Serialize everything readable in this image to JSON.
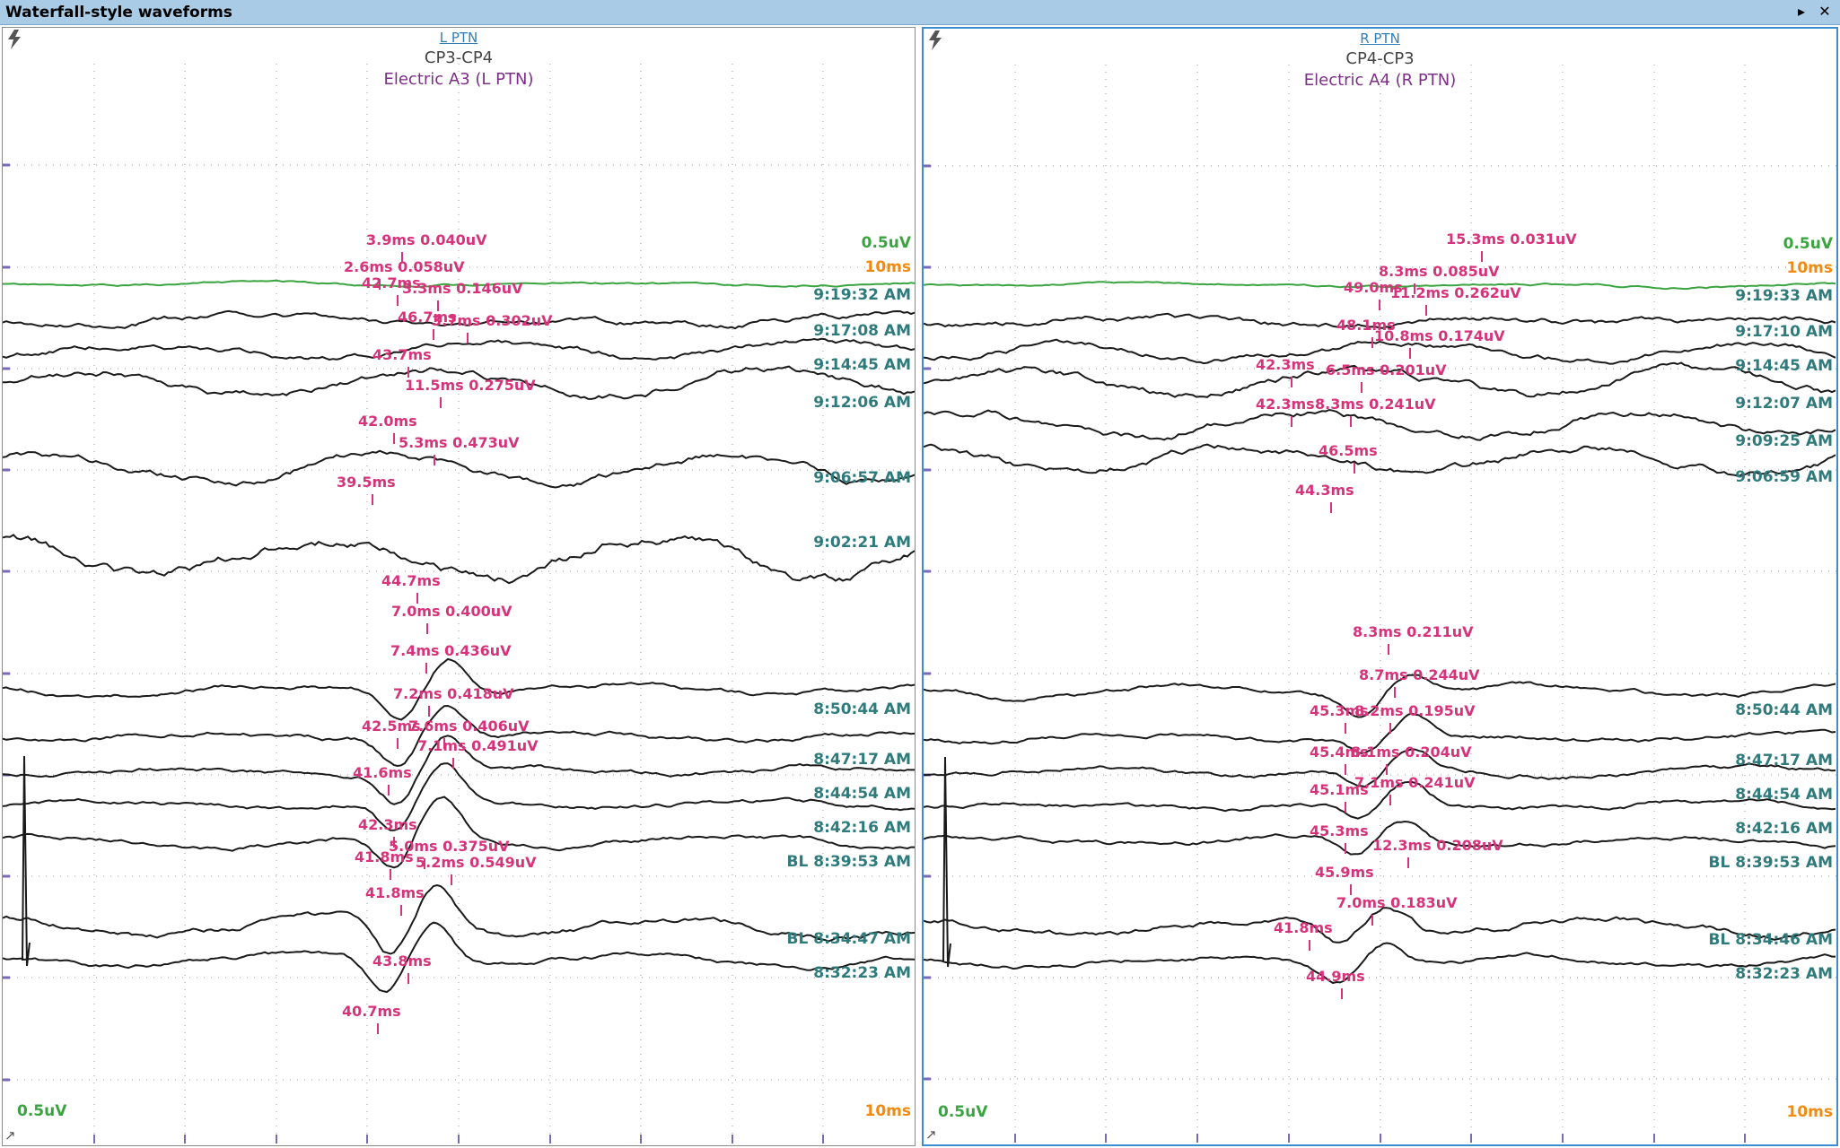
{
  "window": {
    "title": "Waterfall-style waveforms"
  },
  "colors": {
    "trace": "#1a1a1a",
    "baseline_trace": "#3aa540",
    "marker": "#d6337a",
    "timestamp": "#2f7b7b",
    "grid": "#9a9a9a",
    "axis_tick": "#7a6ab8",
    "volt_scale": "#3aa540",
    "time_scale": "#f08a10",
    "link": "#2f7fb6",
    "stim": "#7b2f86"
  },
  "icons": {
    "bolt": "lightning-bolt-icon",
    "arrow": "chevron-right-icon",
    "close": "close-icon"
  },
  "panels": [
    {
      "link": "L PTN",
      "montage": "CP3-CP4",
      "stim": "Electric A3 (L PTN)",
      "volt_scale": "0.5uV",
      "time_scale": "10ms",
      "timestamps": [
        "9:19:32 AM",
        "9:17:08 AM",
        "9:14:45 AM",
        "9:12:06 AM",
        "9:06:57 AM",
        "9:02:21 AM",
        "8:50:44 AM",
        "8:47:17 AM",
        "8:44:54 AM",
        "8:42:16 AM",
        "BL 8:39:53 AM",
        "BL 8:34:47 AM",
        "8:32:23 AM"
      ],
      "markers": [
        "3.9ms 0.040uV",
        "2.6ms 0.058uV",
        "42.7ms",
        "3.3ms 0.146uV",
        "46.7ms",
        "3.7ms 0.302uV",
        "43.7ms",
        "11.5ms 0.275uV",
        "42.0ms",
        "5.3ms 0.473uV",
        "39.5ms",
        "44.7ms",
        "7.0ms 0.400uV",
        "7.4ms 0.436uV",
        "7.2ms 0.418uV",
        "42.5ms",
        "7.6ms 0.406uV",
        "7.1ms 0.491uV",
        "41.6ms",
        "42.3ms",
        "5.0ms 0.375uV",
        "41.8ms",
        "5.2ms 0.549uV",
        "41.8ms",
        "43.8ms",
        "40.7ms"
      ]
    },
    {
      "link": "R PTN",
      "montage": "CP4-CP3",
      "stim": "Electric A4 (R PTN)",
      "volt_scale": "0.5uV",
      "time_scale": "10ms",
      "timestamps": [
        "9:19:33 AM",
        "9:17:10 AM",
        "9:14:45 AM",
        "9:12:07 AM",
        "9:09:25 AM",
        "9:06:59 AM",
        "8:50:44 AM",
        "8:47:17 AM",
        "8:44:54 AM",
        "8:42:16 AM",
        "BL 8:39:53 AM",
        "BL 8:34:46 AM",
        "8:32:23 AM"
      ],
      "markers": [
        "15.3ms 0.031uV",
        "8.3ms 0.085uV",
        "49.0ms",
        "11.2ms 0.262uV",
        "48.1ms",
        "10.8ms 0.174uV",
        "42.3ms",
        "6.5ms 0.201uV",
        "42.3ms",
        "8.3ms 0.241uV",
        "46.5ms",
        "44.3ms",
        "8.3ms 0.211uV",
        "8.7ms 0.244uV",
        "45.3ms",
        "8.2ms 0.195uV",
        "45.4ms",
        "8.1ms 0.204uV",
        "45.1ms",
        "7.1ms 0.241uV",
        "45.3ms",
        "12.3ms 0.208uV",
        "45.9ms",
        "7.0ms 0.183uV",
        "41.8ms",
        "44.9ms"
      ]
    }
  ]
}
